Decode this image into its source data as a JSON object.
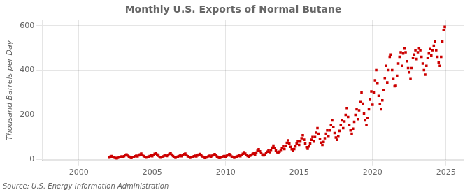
{
  "chart_data": {
    "type": "scatter",
    "title": "Monthly U.S. Exports of Normal Butane",
    "ylabel": "Thousand Barrels per Day",
    "annotation": "Source: U.S. Energy Information Administration",
    "color": "#cc0000",
    "marker": "square",
    "grid": true,
    "xlim": [
      1997.5,
      2026.2
    ],
    "xticks": [
      2000,
      2005,
      2010,
      2015,
      2020,
      2025
    ],
    "ylim": [
      -5,
      625
    ],
    "yticks": [
      0,
      200,
      400,
      600
    ],
    "x": [
      2002.083,
      2002.167,
      2002.25,
      2002.333,
      2002.417,
      2002.5,
      2002.583,
      2002.667,
      2002.75,
      2002.833,
      2002.917,
      2003.0,
      2003.083,
      2003.167,
      2003.25,
      2003.333,
      2003.417,
      2003.5,
      2003.583,
      2003.667,
      2003.75,
      2003.833,
      2003.917,
      2004.0,
      2004.083,
      2004.167,
      2004.25,
      2004.333,
      2004.417,
      2004.5,
      2004.583,
      2004.667,
      2004.75,
      2004.833,
      2004.917,
      2005.0,
      2005.083,
      2005.167,
      2005.25,
      2005.333,
      2005.417,
      2005.5,
      2005.583,
      2005.667,
      2005.75,
      2005.833,
      2005.917,
      2006.0,
      2006.083,
      2006.167,
      2006.25,
      2006.333,
      2006.417,
      2006.5,
      2006.583,
      2006.667,
      2006.75,
      2006.833,
      2006.917,
      2007.0,
      2007.083,
      2007.167,
      2007.25,
      2007.333,
      2007.417,
      2007.5,
      2007.583,
      2007.667,
      2007.75,
      2007.833,
      2007.917,
      2008.0,
      2008.083,
      2008.167,
      2008.25,
      2008.333,
      2008.417,
      2008.5,
      2008.583,
      2008.667,
      2008.75,
      2008.833,
      2008.917,
      2009.0,
      2009.083,
      2009.167,
      2009.25,
      2009.333,
      2009.417,
      2009.5,
      2009.583,
      2009.667,
      2009.75,
      2009.833,
      2009.917,
      2010.0,
      2010.083,
      2010.167,
      2010.25,
      2010.333,
      2010.417,
      2010.5,
      2010.583,
      2010.667,
      2010.75,
      2010.833,
      2010.917,
      2011.0,
      2011.083,
      2011.167,
      2011.25,
      2011.333,
      2011.417,
      2011.5,
      2011.583,
      2011.667,
      2011.75,
      2011.833,
      2011.917,
      2012.0,
      2012.083,
      2012.167,
      2012.25,
      2012.333,
      2012.417,
      2012.5,
      2012.583,
      2012.667,
      2012.75,
      2012.833,
      2012.917,
      2013.0,
      2013.083,
      2013.167,
      2013.25,
      2013.333,
      2013.417,
      2013.5,
      2013.583,
      2013.667,
      2013.75,
      2013.833,
      2013.917,
      2014.0,
      2014.083,
      2014.167,
      2014.25,
      2014.333,
      2014.417,
      2014.5,
      2014.583,
      2014.667,
      2014.75,
      2014.833,
      2014.917,
      2015.0,
      2015.083,
      2015.167,
      2015.25,
      2015.333,
      2015.417,
      2015.5,
      2015.583,
      2015.667,
      2015.75,
      2015.833,
      2015.917,
      2016.0,
      2016.083,
      2016.167,
      2016.25,
      2016.333,
      2016.417,
      2016.5,
      2016.583,
      2016.667,
      2016.75,
      2016.833,
      2016.917,
      2017.0,
      2017.083,
      2017.167,
      2017.25,
      2017.333,
      2017.417,
      2017.5,
      2017.583,
      2017.667,
      2017.75,
      2017.833,
      2017.917,
      2018.0,
      2018.083,
      2018.167,
      2018.25,
      2018.333,
      2018.417,
      2018.5,
      2018.583,
      2018.667,
      2018.75,
      2018.833,
      2018.917,
      2019.0,
      2019.083,
      2019.167,
      2019.25,
      2019.333,
      2019.417,
      2019.5,
      2019.583,
      2019.667,
      2019.75,
      2019.833,
      2019.917,
      2020.0,
      2020.083,
      2020.167,
      2020.25,
      2020.333,
      2020.417,
      2020.5,
      2020.583,
      2020.667,
      2020.75,
      2020.833,
      2020.917,
      2021.0,
      2021.083,
      2021.167,
      2021.25,
      2021.333,
      2021.417,
      2021.5,
      2021.583,
      2021.667,
      2021.75,
      2021.833,
      2021.917,
      2022.0,
      2022.083,
      2022.167,
      2022.25,
      2022.333,
      2022.417,
      2022.5,
      2022.583,
      2022.667,
      2022.75,
      2022.833,
      2022.917,
      2023.0,
      2023.083,
      2023.167,
      2023.25,
      2023.333,
      2023.417,
      2023.5,
      2023.583,
      2023.667,
      2023.75,
      2023.833,
      2023.917,
      2024.0,
      2024.083,
      2024.167,
      2024.25,
      2024.333,
      2024.417,
      2024.5,
      2024.583,
      2024.667,
      2024.75,
      2024.833,
      2024.917
    ],
    "values": [
      8,
      12,
      15,
      10,
      8,
      6,
      5,
      7,
      9,
      11,
      13,
      10,
      14,
      18,
      22,
      16,
      12,
      8,
      6,
      9,
      11,
      14,
      16,
      13,
      18,
      22,
      26,
      20,
      15,
      10,
      8,
      10,
      12,
      15,
      17,
      14,
      20,
      25,
      28,
      22,
      16,
      11,
      8,
      10,
      13,
      16,
      18,
      15,
      20,
      24,
      27,
      21,
      15,
      10,
      7,
      9,
      12,
      15,
      17,
      14,
      19,
      23,
      26,
      20,
      14,
      9,
      7,
      9,
      11,
      14,
      16,
      13,
      17,
      21,
      24,
      18,
      13,
      9,
      6,
      8,
      11,
      14,
      16,
      12,
      16,
      20,
      23,
      17,
      12,
      8,
      6,
      8,
      10,
      13,
      15,
      12,
      16,
      20,
      23,
      17,
      12,
      9,
      7,
      9,
      12,
      15,
      17,
      14,
      19,
      25,
      32,
      26,
      20,
      15,
      12,
      16,
      20,
      24,
      28,
      22,
      30,
      38,
      45,
      36,
      28,
      22,
      18,
      22,
      28,
      34,
      40,
      32,
      42,
      52,
      62,
      50,
      40,
      32,
      28,
      34,
      42,
      50,
      58,
      46,
      60,
      74,
      85,
      70,
      56,
      45,
      38,
      46,
      58,
      70,
      80,
      65,
      80,
      95,
      108,
      88,
      70,
      55,
      48,
      58,
      72,
      88,
      100,
      80,
      100,
      120,
      140,
      115,
      92,
      75,
      65,
      78,
      95,
      115,
      130,
      105,
      130,
      155,
      175,
      145,
      118,
      98,
      88,
      105,
      128,
      155,
      175,
      140,
      170,
      200,
      230,
      190,
      155,
      130,
      115,
      138,
      168,
      200,
      225,
      180,
      220,
      260,
      300,
      250,
      205,
      175,
      155,
      185,
      225,
      270,
      305,
      245,
      300,
      355,
      400,
      340,
      285,
      248,
      225,
      265,
      310,
      365,
      420,
      345,
      400,
      460,
      470,
      400,
      360,
      328,
      330,
      375,
      430,
      460,
      480,
      420,
      475,
      500,
      480,
      440,
      410,
      390,
      360,
      410,
      455,
      470,
      490,
      450,
      480,
      500,
      490,
      460,
      430,
      400,
      380,
      420,
      455,
      475,
      495,
      465,
      490,
      510,
      530,
      490,
      460,
      435,
      420,
      460,
      530,
      580,
      595
    ]
  }
}
